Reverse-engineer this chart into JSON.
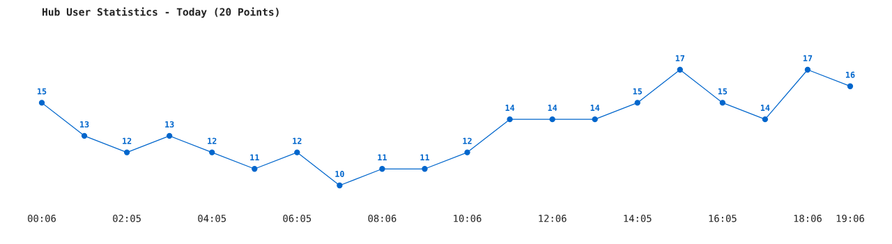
{
  "chart_data": {
    "type": "line",
    "title": "Hub User Statistics - Today (20 Points)",
    "categories": [
      "00:06",
      null,
      "02:05",
      null,
      "04:05",
      null,
      "06:05",
      null,
      "08:06",
      null,
      "10:06",
      null,
      "12:06",
      null,
      "14:05",
      null,
      "16:05",
      null,
      "18:06",
      "19:06"
    ],
    "series": [
      {
        "color": "#0066cc",
        "values": [
          15,
          13,
          12,
          13,
          12,
          11,
          12,
          10,
          11,
          11,
          12,
          14,
          14,
          14,
          15,
          17,
          15,
          14,
          17,
          16
        ]
      }
    ],
    "data_labels": true,
    "marker": "circle",
    "line_style": "solid",
    "grid": false,
    "legend": false
  }
}
